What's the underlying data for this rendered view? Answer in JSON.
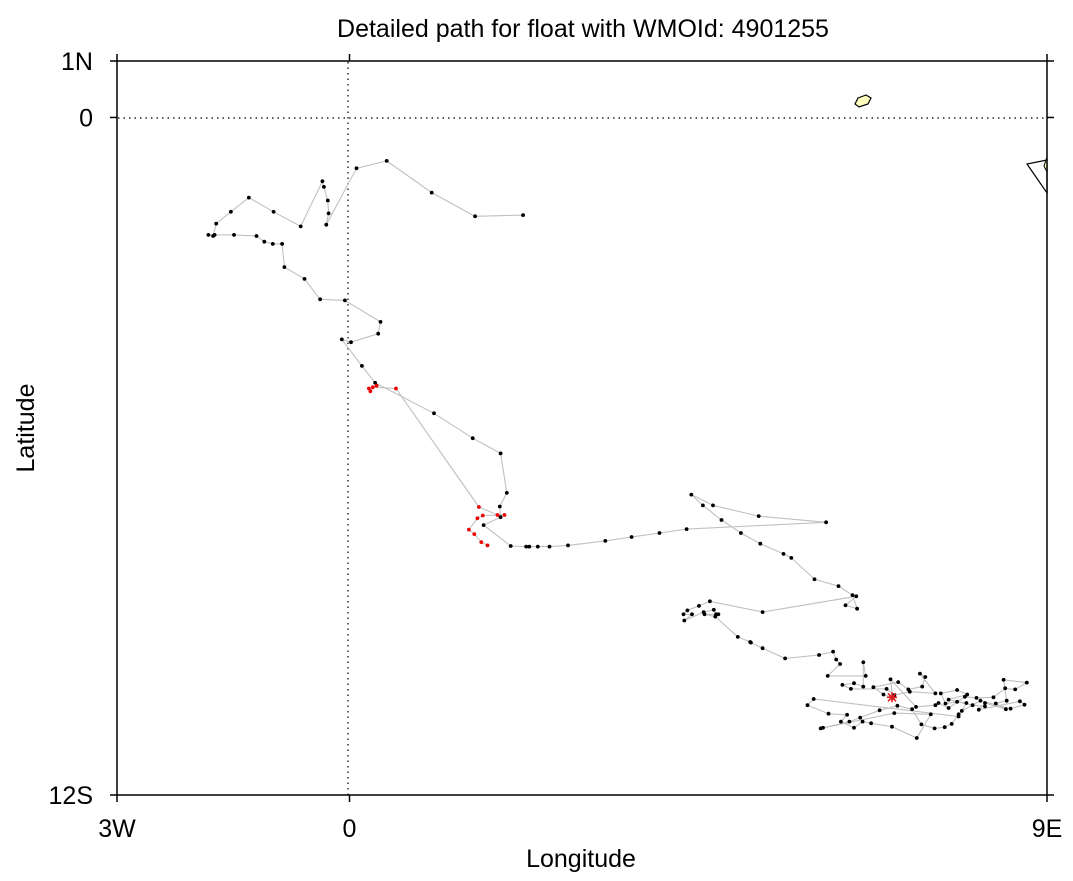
{
  "chart_data": {
    "type": "scatter",
    "title": "Detailed path for float with WMOId: 4901255",
    "xlabel": "Longitude",
    "ylabel": "Latitude",
    "xlim": [
      -3,
      9
    ],
    "ylim": [
      -12,
      1
    ],
    "x_ticks": [
      {
        "value": -3,
        "label": "3W"
      },
      {
        "value": 0,
        "label": "0"
      },
      {
        "value": 9,
        "label": "9E"
      }
    ],
    "y_ticks": [
      {
        "value": 1,
        "label": "1N"
      },
      {
        "value": 0,
        "label": "0"
      },
      {
        "value": -12,
        "label": "12S"
      }
    ],
    "reference_lines": {
      "equator": 0,
      "prime_meridian": 0,
      "style": "dotted"
    },
    "colors": {
      "track_line": "#c0c0c0",
      "profile_point": "#000000",
      "highlight_point": "#ee0000",
      "last_position": "#dd2222",
      "land_fill": "#ffffc0",
      "land_outline": "#000000"
    },
    "series": [
      {
        "marker": "dot",
        "color": "#000000",
        "points": [
          [
            2.24,
            -1.73
          ],
          [
            1.62,
            -1.75
          ],
          [
            1.06,
            -1.33
          ],
          [
            0.48,
            -0.77
          ],
          [
            0.09,
            -0.9
          ],
          [
            -0.3,
            -1.9
          ],
          [
            -0.27,
            -1.7
          ],
          [
            -0.28,
            -1.47
          ],
          [
            -0.33,
            -1.23
          ],
          [
            -0.35,
            -1.13
          ],
          [
            -0.63,
            -1.93
          ],
          [
            -0.98,
            -1.67
          ],
          [
            -1.3,
            -1.42
          ],
          [
            -1.53,
            -1.67
          ],
          [
            -1.72,
            -1.88
          ],
          [
            -1.76,
            -2.1
          ],
          [
            -1.82,
            -2.08
          ],
          [
            -1.74,
            -2.08
          ],
          [
            -1.49,
            -2.08
          ],
          [
            -1.2,
            -2.1
          ],
          [
            -1.1,
            -2.2
          ],
          [
            -0.99,
            -2.24
          ],
          [
            -0.87,
            -2.24
          ],
          [
            -0.84,
            -2.65
          ],
          [
            -0.58,
            -2.86
          ],
          [
            -0.38,
            -3.22
          ],
          [
            -0.06,
            -3.24
          ],
          [
            0.4,
            -3.62
          ],
          [
            0.37,
            -3.83
          ],
          [
            0.02,
            -3.98
          ],
          [
            -0.1,
            -3.93
          ],
          [
            0.16,
            -4.4
          ],
          [
            0.33,
            -4.7
          ],
          [
            1.09,
            -5.24
          ],
          [
            1.59,
            -5.68
          ],
          [
            1.95,
            -5.95
          ],
          [
            2.03,
            -6.65
          ],
          [
            1.94,
            -6.89
          ],
          [
            1.95,
            -7.08
          ],
          [
            1.73,
            -7.22
          ],
          [
            2.08,
            -7.59
          ],
          [
            2.28,
            -7.6
          ],
          [
            2.43,
            -7.6
          ],
          [
            2.32,
            -7.6
          ],
          [
            2.58,
            -7.6
          ],
          [
            2.82,
            -7.58
          ],
          [
            3.3,
            -7.5
          ],
          [
            3.64,
            -7.43
          ],
          [
            4.0,
            -7.36
          ],
          [
            4.35,
            -7.29
          ],
          [
            6.15,
            -7.17
          ],
          [
            5.28,
            -7.06
          ],
          [
            4.69,
            -6.87
          ],
          [
            4.41,
            -6.68
          ],
          [
            4.56,
            -6.87
          ],
          [
            4.8,
            -7.13
          ],
          [
            5.05,
            -7.36
          ],
          [
            5.3,
            -7.55
          ],
          [
            5.6,
            -7.73
          ],
          [
            5.7,
            -7.8
          ],
          [
            6.0,
            -8.18
          ],
          [
            6.31,
            -8.3
          ],
          [
            6.49,
            -8.46
          ],
          [
            6.55,
            -8.7
          ],
          [
            6.4,
            -8.64
          ],
          [
            6.54,
            -8.48
          ],
          [
            5.33,
            -8.76
          ],
          [
            4.65,
            -8.57
          ],
          [
            4.51,
            -8.65
          ],
          [
            4.36,
            -8.73
          ],
          [
            4.31,
            -8.8
          ],
          [
            4.42,
            -8.8
          ],
          [
            4.32,
            -8.91
          ],
          [
            4.57,
            -8.76
          ],
          [
            4.7,
            -8.72
          ],
          [
            4.73,
            -8.8
          ],
          [
            4.76,
            -8.8
          ],
          [
            4.58,
            -8.8
          ],
          [
            4.72,
            -8.84
          ],
          [
            5.01,
            -9.2
          ],
          [
            5.17,
            -9.29
          ],
          [
            5.18,
            -9.3
          ],
          [
            5.33,
            -9.4
          ],
          [
            5.62,
            -9.58
          ],
          [
            6.06,
            -9.52
          ],
          [
            6.24,
            -9.46
          ],
          [
            6.28,
            -9.6
          ],
          [
            6.33,
            -9.68
          ],
          [
            6.17,
            -9.89
          ],
          [
            6.66,
            -9.89
          ],
          [
            6.63,
            -9.65
          ],
          [
            6.63,
            -10.08
          ],
          [
            6.51,
            -10.02
          ],
          [
            6.36,
            -10.05
          ],
          [
            6.47,
            -10.12
          ],
          [
            6.93,
            -10.12
          ],
          [
            7.03,
            -10.23
          ],
          [
            7.23,
            -10.17
          ],
          [
            7.56,
            -10.2
          ],
          [
            7.36,
            -9.85
          ],
          [
            7.43,
            -9.91
          ],
          [
            7.39,
            -10.08
          ],
          [
            7.21,
            -10.13
          ],
          [
            7.08,
            -10.0
          ],
          [
            6.76,
            -10.09
          ],
          [
            6.89,
            -10.22
          ],
          [
            7.01,
            -10.28
          ],
          [
            6.98,
            -9.95
          ],
          [
            7.31,
            -10.44
          ],
          [
            7.56,
            -10.41
          ],
          [
            7.6,
            -10.37
          ],
          [
            7.73,
            -10.46
          ],
          [
            7.94,
            -10.26
          ],
          [
            8.09,
            -10.28
          ],
          [
            8.31,
            -10.27
          ],
          [
            8.46,
            -10.11
          ],
          [
            8.59,
            -10.13
          ],
          [
            8.74,
            -10.01
          ],
          [
            8.44,
            -9.96
          ],
          [
            8.48,
            -10.33
          ],
          [
            8.34,
            -10.38
          ],
          [
            8.47,
            -10.48
          ],
          [
            8.2,
            -10.37
          ],
          [
            8.12,
            -10.49
          ],
          [
            8.65,
            -10.34
          ],
          [
            8.71,
            -10.4
          ],
          [
            8.53,
            -10.47
          ],
          [
            8.14,
            -10.33
          ],
          [
            7.9,
            -10.51
          ],
          [
            7.86,
            -10.57
          ],
          [
            7.77,
            -10.74
          ],
          [
            7.68,
            -10.8
          ],
          [
            7.55,
            -10.82
          ],
          [
            7.38,
            -10.75
          ],
          [
            7.26,
            -10.48
          ],
          [
            7.07,
            -10.42
          ],
          [
            6.84,
            -10.5
          ],
          [
            6.59,
            -10.63
          ],
          [
            6.45,
            -10.7
          ],
          [
            6.11,
            -10.81
          ],
          [
            6.08,
            -10.82
          ],
          [
            7.03,
            -10.55
          ],
          [
            7.5,
            -10.57
          ],
          [
            7.32,
            -10.99
          ],
          [
            7.0,
            -10.79
          ],
          [
            6.73,
            -10.73
          ],
          [
            6.62,
            -10.7
          ],
          [
            6.51,
            -10.81
          ],
          [
            6.34,
            -10.7
          ],
          [
            6.42,
            -10.58
          ],
          [
            6.18,
            -10.56
          ],
          [
            5.91,
            -10.41
          ],
          [
            5.99,
            -10.3
          ],
          [
            7.86,
            -10.61
          ],
          [
            7.96,
            -10.37
          ],
          [
            7.84,
            -10.35
          ],
          [
            7.69,
            -10.38
          ],
          [
            7.63,
            -10.2
          ],
          [
            7.84,
            -10.14
          ],
          [
            7.97,
            -10.22
          ],
          [
            7.73,
            -10.31
          ],
          [
            8.04,
            -10.41
          ],
          [
            8.2,
            -10.43
          ]
        ]
      },
      {
        "marker": "dot",
        "color": "#ee0000",
        "points": [
          [
            0.35,
            -4.75
          ],
          [
            0.25,
            -4.8
          ],
          [
            0.27,
            -4.85
          ],
          [
            0.3,
            -4.78
          ],
          [
            0.6,
            -4.8
          ],
          [
            1.67,
            -6.9
          ],
          [
            1.91,
            -7.04
          ],
          [
            2.0,
            -7.04
          ],
          [
            1.72,
            -7.05
          ],
          [
            1.65,
            -7.1
          ],
          [
            1.54,
            -7.3
          ],
          [
            1.61,
            -7.38
          ],
          [
            1.7,
            -7.52
          ],
          [
            1.78,
            -7.58
          ]
        ]
      },
      {
        "marker": "asterisk",
        "label": "",
        "color": "#dd2222",
        "points": [
          [
            7.0,
            -10.27
          ]
        ]
      }
    ]
  }
}
